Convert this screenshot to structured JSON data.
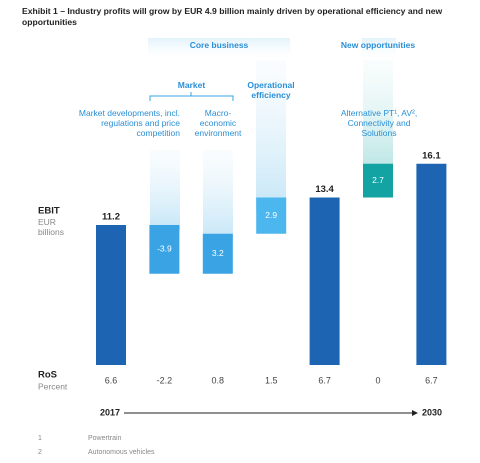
{
  "chart_data": {
    "type": "waterfall",
    "title": "Exhibit 1 – Industry profits will grow by EUR 4.9 billion mainly driven by operational efficiency and new opportunities",
    "y_label": "EBIT",
    "y_unit": "EUR billions",
    "categories": [
      null,
      null,
      null,
      null,
      null,
      null,
      null
    ],
    "values": [
      11.2,
      -3.9,
      3.2,
      2.9,
      13.4,
      2.7,
      16.1
    ],
    "totals": [
      true,
      false,
      false,
      false,
      true,
      false,
      true
    ],
    "colors": [
      "#1d65b2",
      "#39a3e3",
      "#39a3e3",
      "#4cb6ee",
      "#1d65b2",
      "#13a3a3",
      "#1d65b2"
    ],
    "groups": {
      "core_business": "Core business",
      "market": "Market",
      "operational_efficiency": "Operational efficiency",
      "new_opportunities": "New opportunities"
    },
    "descriptions": {
      "market_developments": "Market developments, incl. regulations and price competition",
      "macro": "Macro-economic environment",
      "new_opportunities": "Alternative PT¹, AV², Connectivity and Solutions"
    },
    "ros": {
      "label": "RoS",
      "unit": "Percent",
      "values": [
        6.6,
        -2.2,
        0.8,
        1.5,
        6.7,
        0,
        6.7
      ]
    },
    "timeline": {
      "start": "2017",
      "end": "2030"
    },
    "footnotes": [
      {
        "number": "1",
        "text": "Powertrain"
      },
      {
        "number": "2",
        "text": "Autonomous vehicles"
      }
    ]
  }
}
